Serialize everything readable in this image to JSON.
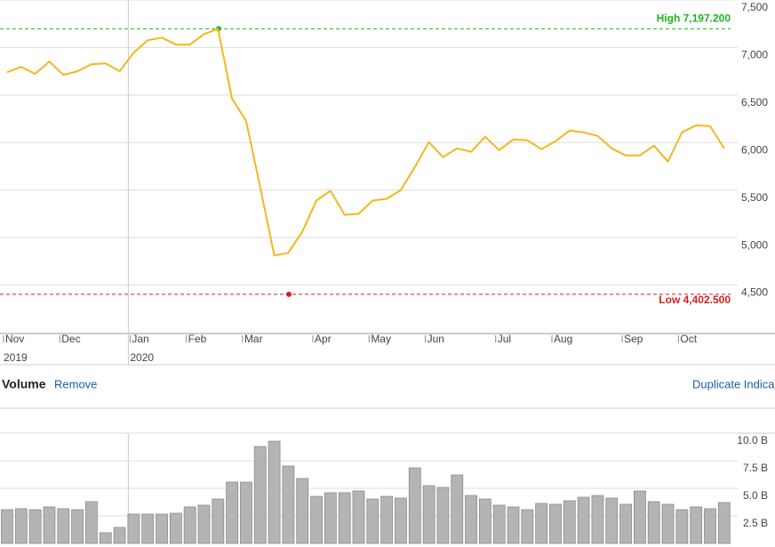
{
  "chart_data": [
    {
      "type": "line",
      "color": "#f5b61e",
      "categories": [
        "Nov",
        null,
        null,
        null,
        "Dec",
        null,
        null,
        null,
        null,
        "Jan",
        null,
        null,
        null,
        "Feb",
        null,
        null,
        null,
        "Mar",
        null,
        null,
        null,
        null,
        "Apr",
        null,
        null,
        null,
        "May",
        null,
        null,
        null,
        "Jun",
        null,
        null,
        null,
        null,
        "Jul",
        null,
        null,
        null,
        "Aug",
        null,
        null,
        null,
        null,
        "Sep",
        null,
        null,
        null,
        "Oct",
        null,
        null,
        null
      ],
      "year_labels": [
        "2019",
        "2020"
      ],
      "values": [
        6740,
        6796,
        6722,
        6852,
        6713,
        6750,
        6824,
        6834,
        6750,
        6946,
        7076,
        7104,
        7030,
        7030,
        7141,
        7197.2,
        6461,
        6228,
        5529,
        4811,
        4839,
        5063,
        5389,
        5492,
        5240,
        5249,
        5389,
        5408,
        5501,
        5743,
        6004,
        5846,
        5939,
        5902,
        6060,
        5920,
        6032,
        6023,
        5930,
        6014,
        6125,
        6107,
        6070,
        5939,
        5864,
        5864,
        5967,
        5799,
        6107,
        6181,
        6172,
        5939
      ],
      "ylim": [
        3990,
        7500
      ],
      "yticks": [
        {
          "value": 4500,
          "label": "4,500"
        },
        {
          "value": 5000,
          "label": "5,000"
        },
        {
          "value": 5500,
          "label": "5,500"
        },
        {
          "value": 6000,
          "label": "6,000"
        },
        {
          "value": 6500,
          "label": "6,500"
        },
        {
          "value": 7000,
          "label": "7,000"
        },
        {
          "value": 7500,
          "label": "7,500"
        }
      ],
      "grid": true,
      "high": {
        "value": 7197.2,
        "label": "High 7,197.200",
        "color": "#1fb41f"
      },
      "low": {
        "value": 4402.5,
        "label": "Low 4,402.500",
        "color": "#d02020"
      }
    },
    {
      "type": "bar",
      "title": "Volume",
      "actions": [
        "Remove",
        "Duplicate Indicator"
      ],
      "color": "#b4b4b4",
      "values": [
        3.06,
        3.15,
        3.06,
        3.31,
        3.15,
        3.06,
        3.79,
        0.97,
        1.45,
        2.66,
        2.66,
        2.66,
        2.74,
        3.31,
        3.47,
        4.03,
        5.56,
        5.56,
        8.79,
        9.27,
        7.02,
        5.89,
        4.27,
        4.6,
        4.6,
        4.76,
        4.03,
        4.27,
        4.11,
        6.85,
        5.24,
        5.08,
        6.21,
        4.35,
        4.03,
        3.47,
        3.31,
        3.06,
        3.63,
        3.55,
        3.87,
        4.19,
        4.35,
        4.11,
        3.55,
        4.76,
        3.79,
        3.55,
        3.06,
        3.31,
        3.15,
        3.71
      ],
      "ylim": [
        0,
        10
      ],
      "yticks": [
        {
          "value": 2.5,
          "label": "2.5 B"
        },
        {
          "value": 5,
          "label": "5.0 B"
        },
        {
          "value": 7.5,
          "label": "7.5 B"
        },
        {
          "value": 10,
          "label": "10.0 B"
        }
      ],
      "grid": true
    }
  ]
}
